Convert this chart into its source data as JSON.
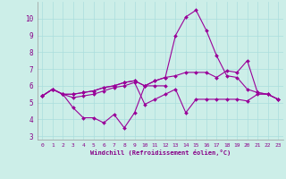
{
  "xlabel": "Windchill (Refroidissement éolien,°C)",
  "background_color": "#cceee8",
  "grid_color": "#aadddd",
  "line_color": "#990099",
  "text_color": "#880088",
  "xlim": [
    -0.5,
    23.5
  ],
  "ylim": [
    2.8,
    11.0
  ],
  "xticks": [
    0,
    1,
    2,
    3,
    4,
    5,
    6,
    7,
    8,
    9,
    10,
    11,
    12,
    13,
    14,
    15,
    16,
    17,
    18,
    19,
    20,
    21,
    22,
    23
  ],
  "yticks": [
    3,
    4,
    5,
    6,
    7,
    8,
    9,
    10
  ],
  "series": [
    {
      "x": [
        0,
        1,
        2,
        3,
        4,
        5,
        6,
        7,
        8,
        9,
        10,
        11,
        12
      ],
      "y": [
        5.4,
        5.8,
        5.5,
        4.7,
        4.1,
        4.1,
        3.8,
        4.3,
        3.5,
        4.4,
        6.0,
        6.0,
        6.0
      ]
    },
    {
      "x": [
        0,
        1,
        2,
        3,
        4,
        5,
        6,
        7,
        8,
        9,
        10,
        11,
        12,
        13,
        14,
        15,
        16,
        17,
        18,
        19,
        20,
        21,
        22,
        23
      ],
      "y": [
        5.4,
        5.8,
        5.5,
        5.3,
        5.4,
        5.5,
        5.7,
        5.9,
        6.0,
        6.2,
        4.9,
        5.2,
        5.5,
        5.8,
        4.4,
        5.2,
        5.2,
        5.2,
        5.2,
        5.2,
        5.1,
        5.5,
        5.5,
        5.2
      ]
    },
    {
      "x": [
        0,
        1,
        2,
        3,
        4,
        5,
        6,
        7,
        8,
        9,
        10,
        11,
        12,
        13,
        14,
        15,
        16,
        17,
        18,
        19,
        20,
        21,
        22,
        23
      ],
      "y": [
        5.4,
        5.8,
        5.5,
        5.5,
        5.6,
        5.7,
        5.9,
        6.0,
        6.2,
        6.3,
        6.0,
        6.3,
        6.5,
        6.6,
        6.8,
        6.8,
        6.8,
        6.5,
        6.9,
        6.8,
        7.5,
        5.6,
        5.5,
        5.2
      ]
    },
    {
      "x": [
        0,
        1,
        2,
        3,
        4,
        5,
        6,
        7,
        8,
        9,
        10,
        11,
        12,
        13,
        14,
        15,
        16,
        17,
        18,
        19,
        20,
        21,
        22,
        23
      ],
      "y": [
        5.4,
        5.8,
        5.5,
        5.5,
        5.6,
        5.7,
        5.9,
        6.0,
        6.2,
        6.3,
        6.0,
        6.3,
        6.5,
        9.0,
        10.1,
        10.5,
        9.3,
        7.8,
        6.6,
        6.5,
        5.8,
        5.6,
        5.5,
        5.2
      ]
    }
  ]
}
